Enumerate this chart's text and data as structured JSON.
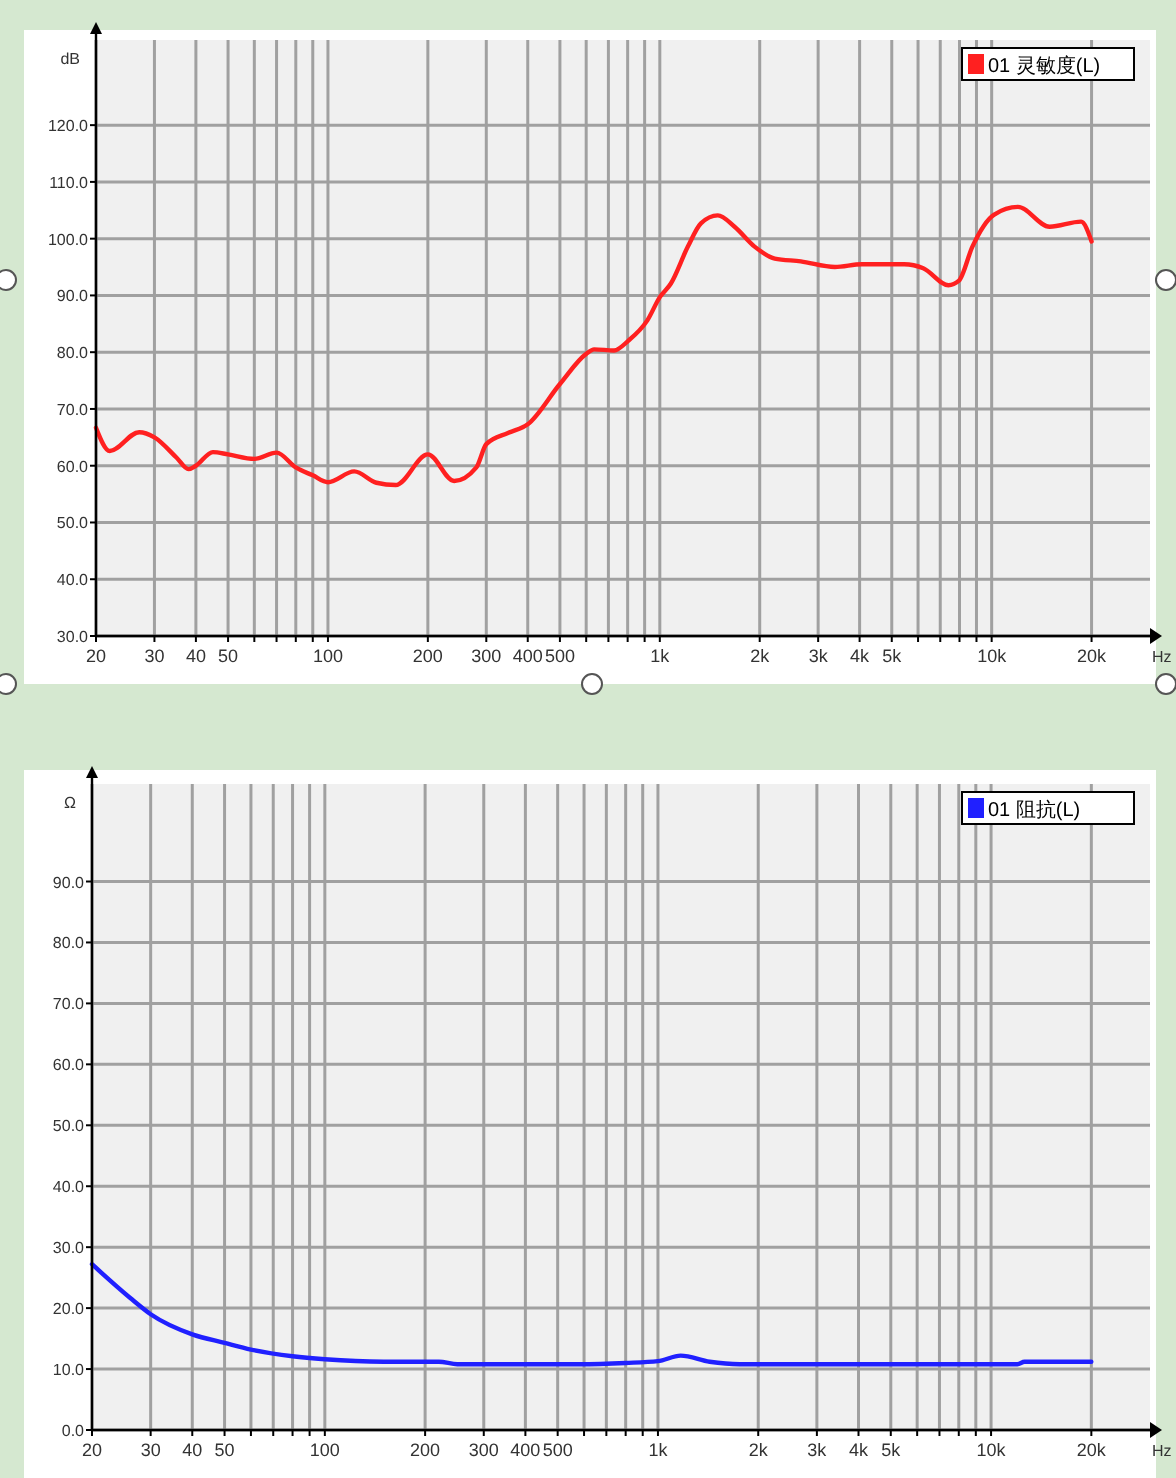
{
  "chart_data": [
    {
      "type": "line",
      "ylabel": "dB",
      "xlabel": "Hz",
      "log": "x",
      "grid": true,
      "legend": "top right",
      "marker": "none",
      "line_style": "solid",
      "xlim": [
        20,
        30000
      ],
      "ylim": [
        30,
        135
      ],
      "xticks": [
        20,
        30,
        40,
        50,
        {
          "value": 60,
          "label": null
        },
        {
          "value": 70,
          "label": null
        },
        {
          "value": 80,
          "label": null
        },
        {
          "value": 90,
          "label": null
        },
        100,
        200,
        300,
        400,
        500,
        {
          "value": 600,
          "label": null
        },
        {
          "value": 700,
          "label": null
        },
        {
          "value": 800,
          "label": null
        },
        {
          "value": 900,
          "label": null
        },
        {
          "value": 1000,
          "label": "1k"
        },
        {
          "value": 2000,
          "label": "2k"
        },
        {
          "value": 3000,
          "label": "3k"
        },
        {
          "value": 4000,
          "label": "4k"
        },
        {
          "value": 5000,
          "label": "5k"
        },
        {
          "value": 6000,
          "label": null
        },
        {
          "value": 7000,
          "label": null
        },
        {
          "value": 8000,
          "label": null
        },
        {
          "value": 9000,
          "label": null
        },
        {
          "value": 10000,
          "label": "10k"
        },
        {
          "value": 20000,
          "label": "20k"
        }
      ],
      "yticks": [
        {
          "value": 30,
          "label": "30.0"
        },
        {
          "value": 40,
          "label": "40.0"
        },
        {
          "value": 50,
          "label": "50.0"
        },
        {
          "value": 60,
          "label": "60.0"
        },
        {
          "value": 70,
          "label": "70.0"
        },
        {
          "value": 80,
          "label": "80.0"
        },
        {
          "value": 90,
          "label": "90.0"
        },
        {
          "value": 100,
          "label": "100.0"
        },
        {
          "value": 110,
          "label": "110.0"
        },
        {
          "value": 120,
          "label": "120.0"
        }
      ],
      "series": [
        {
          "name": "01 灵敏度(L)",
          "color": "#ff2020",
          "x": [
            20,
            22,
            27,
            30,
            35,
            38,
            40,
            45,
            50,
            60,
            70,
            80,
            90,
            100,
            120,
            140,
            160,
            200,
            240,
            280,
            300,
            350,
            400,
            500,
            600,
            634,
            728,
            803,
            917,
            1000,
            1080,
            1215,
            1330,
            1495,
            1680,
            1930,
            2220,
            2660,
            3370,
            4060,
            5450,
            6220,
            7410,
            7970,
            8750,
            10150,
            12000,
            14950,
            18600,
            20000
          ],
          "values": [
            66.7,
            62.6,
            65.9,
            65,
            61.4,
            59.4,
            60,
            62.4,
            62,
            61.2,
            62.3,
            59.7,
            58.3,
            57.1,
            59,
            57,
            56.6,
            62,
            57.3,
            59.7,
            63.8,
            65.8,
            67.3,
            74.4,
            79.7,
            80.5,
            80.3,
            82,
            85.6,
            89.7,
            92.1,
            98.6,
            102.7,
            104.1,
            102.1,
            98.6,
            96.5,
            96,
            95,
            95.5,
            95.5,
            94.8,
            91.8,
            92.6,
            98.6,
            104.2,
            105.6,
            102.1,
            103,
            99.5
          ]
        }
      ]
    },
    {
      "type": "line",
      "ylabel": "Ω",
      "xlabel": "Hz",
      "log": "x",
      "grid": true,
      "legend": "top right",
      "marker": "none",
      "line_style": "solid",
      "xlim": [
        20,
        30000
      ],
      "ylim": [
        0,
        106
      ],
      "xticks": [
        20,
        30,
        40,
        50,
        {
          "value": 60,
          "label": null
        },
        {
          "value": 70,
          "label": null
        },
        {
          "value": 80,
          "label": null
        },
        {
          "value": 90,
          "label": null
        },
        100,
        200,
        300,
        400,
        500,
        {
          "value": 600,
          "label": null
        },
        {
          "value": 700,
          "label": null
        },
        {
          "value": 800,
          "label": null
        },
        {
          "value": 900,
          "label": null
        },
        {
          "value": 1000,
          "label": "1k"
        },
        {
          "value": 2000,
          "label": "2k"
        },
        {
          "value": 3000,
          "label": "3k"
        },
        {
          "value": 4000,
          "label": "4k"
        },
        {
          "value": 5000,
          "label": "5k"
        },
        {
          "value": 6000,
          "label": null
        },
        {
          "value": 7000,
          "label": null
        },
        {
          "value": 8000,
          "label": null
        },
        {
          "value": 9000,
          "label": null
        },
        {
          "value": 10000,
          "label": "10k"
        },
        {
          "value": 20000,
          "label": "20k"
        }
      ],
      "yticks": [
        {
          "value": 0,
          "label": "0.0"
        },
        {
          "value": 10,
          "label": "10.0"
        },
        {
          "value": 20,
          "label": "20.0"
        },
        {
          "value": 30,
          "label": "30.0"
        },
        {
          "value": 40,
          "label": "40.0"
        },
        {
          "value": 50,
          "label": "50.0"
        },
        {
          "value": 60,
          "label": "60.0"
        },
        {
          "value": 70,
          "label": "70.0"
        },
        {
          "value": 80,
          "label": "80.0"
        },
        {
          "value": 90,
          "label": "90.0"
        }
      ],
      "series": [
        {
          "name": "01 阻抗(L)",
          "color": "#2020ff",
          "x": [
            20,
            26,
            30,
            40,
            50,
            60,
            80,
            100,
            150,
            220,
            250,
            579,
            800,
            1000,
            1170,
            1430,
            1760,
            12000,
            12600,
            20000
          ],
          "values": [
            27.2,
            21.7,
            19,
            15.7,
            14.3,
            13.2,
            12.1,
            11.6,
            11.2,
            11.2,
            10.8,
            10.8,
            11,
            11.3,
            12.2,
            11.2,
            10.8,
            10.8,
            11.2,
            11.2
          ]
        }
      ]
    }
  ]
}
